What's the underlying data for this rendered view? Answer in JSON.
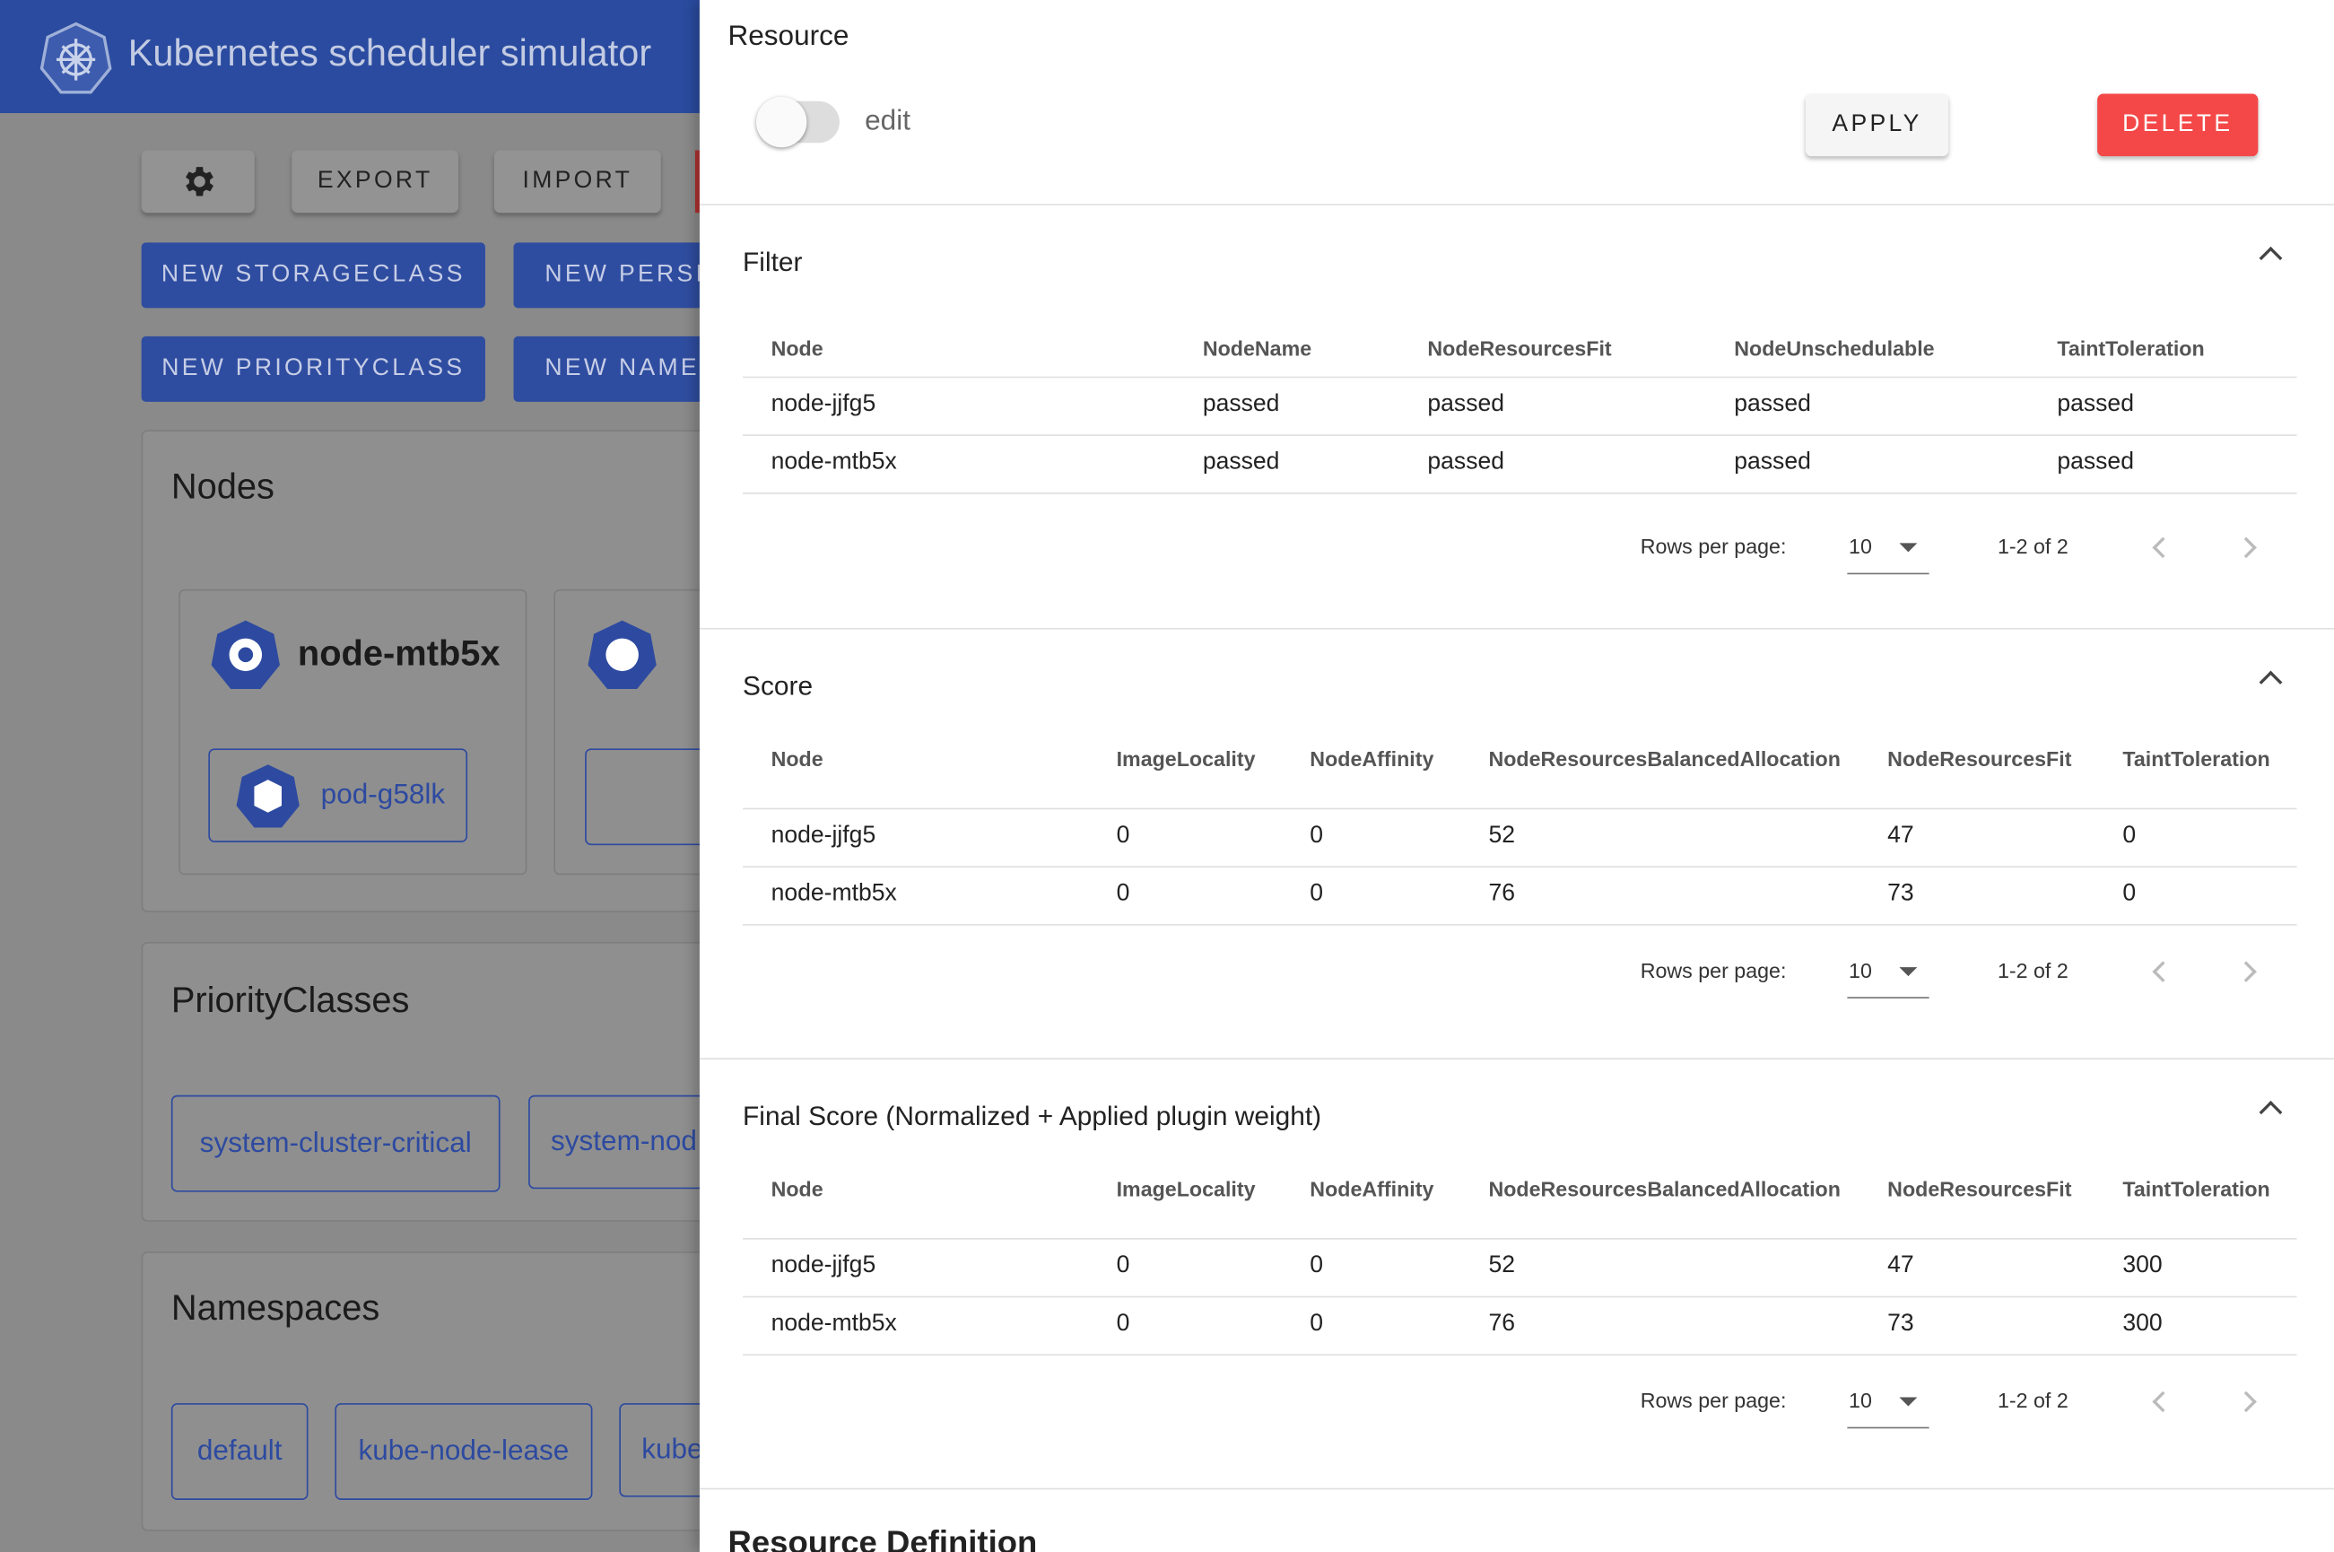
{
  "header": {
    "title": "Kubernetes scheduler simulator"
  },
  "toolbar": {
    "buttons": [
      "EXPORT",
      "IMPORT"
    ]
  },
  "create_buttons": [
    "NEW STORAGECLASS",
    "NEW PERSIS",
    "NEW PRIORITYCLASS",
    "NEW NAMES"
  ],
  "nodes": {
    "title": "Nodes",
    "cards": [
      {
        "name": "node-mtb5x",
        "pods": [
          "pod-g58lk"
        ]
      }
    ]
  },
  "priority_classes": {
    "title": "PriorityClasses",
    "items": [
      "system-cluster-critical",
      "system-nod"
    ]
  },
  "namespaces": {
    "title": "Namespaces",
    "items": [
      "default",
      "kube-node-lease",
      "kube"
    ]
  },
  "drawer": {
    "title": "Resource",
    "toggle_label": "edit",
    "apply": "APPLY",
    "delete": "DELETE",
    "sections": [
      {
        "title": "Filter",
        "columns": [
          "Node",
          "NodeName",
          "NodeResourcesFit",
          "NodeUnschedulable",
          "TaintToleration"
        ],
        "rows": [
          [
            "node-jjfg5",
            "passed",
            "passed",
            "passed",
            "passed"
          ],
          [
            "node-mtb5x",
            "passed",
            "passed",
            "passed",
            "passed"
          ]
        ],
        "rows_per_page_label": "Rows per page:",
        "rows_per_page": 10,
        "range": "1-2 of 2"
      },
      {
        "title": "Score",
        "columns": [
          "Node",
          "ImageLocality",
          "NodeAffinity",
          "NodeResourcesBalancedAllocation",
          "NodeResourcesFit",
          "TaintToleration"
        ],
        "rows": [
          [
            "node-jjfg5",
            0,
            0,
            52,
            47,
            0
          ],
          [
            "node-mtb5x",
            0,
            0,
            76,
            73,
            0
          ]
        ],
        "rows_per_page_label": "Rows per page:",
        "rows_per_page": 10,
        "range": "1-2 of 2"
      },
      {
        "title": "Final Score (Normalized + Applied plugin weight)",
        "columns": [
          "Node",
          "ImageLocality",
          "NodeAffinity",
          "NodeResourcesBalancedAllocation",
          "NodeResourcesFit",
          "TaintToleration"
        ],
        "rows": [
          [
            "node-jjfg5",
            0,
            0,
            52,
            47,
            300
          ],
          [
            "node-mtb5x",
            0,
            0,
            76,
            73,
            300
          ]
        ],
        "rows_per_page_label": "Rows per page:",
        "rows_per_page": 10,
        "range": "1-2 of 2"
      }
    ],
    "definition_title": "Resource Definition"
  }
}
